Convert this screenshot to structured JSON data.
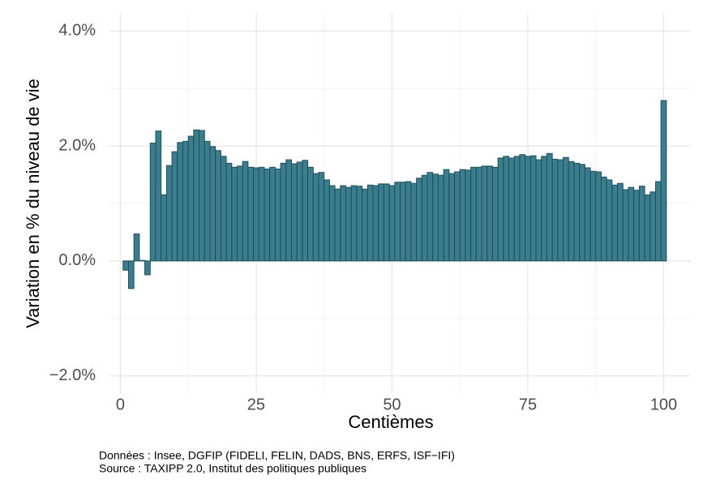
{
  "chart_data": {
    "type": "bar",
    "x_label": "Centièmes",
    "y_label": "Variation en % du niveau de vie",
    "captions": [
      "Données : Insee, DGFIP (FIDELI, FELIN, DADS, BNS, ERFS, ISF−IFI)",
      "Source : TAXIPP 2.0, Institut des politiques publiques"
    ],
    "x": [
      1,
      2,
      3,
      4,
      5,
      6,
      7,
      8,
      9,
      10,
      11,
      12,
      13,
      14,
      15,
      16,
      17,
      18,
      19,
      20,
      21,
      22,
      23,
      24,
      25,
      26,
      27,
      28,
      29,
      30,
      31,
      32,
      33,
      34,
      35,
      36,
      37,
      38,
      39,
      40,
      41,
      42,
      43,
      44,
      45,
      46,
      47,
      48,
      49,
      50,
      51,
      52,
      53,
      54,
      55,
      56,
      57,
      58,
      59,
      60,
      61,
      62,
      63,
      64,
      65,
      66,
      67,
      68,
      69,
      70,
      71,
      72,
      73,
      74,
      75,
      76,
      77,
      78,
      79,
      80,
      81,
      82,
      83,
      84,
      85,
      86,
      87,
      88,
      89,
      90,
      91,
      92,
      93,
      94,
      95,
      96,
      97,
      98,
      99,
      100
    ],
    "values": [
      -0.16,
      -0.48,
      0.47,
      0.01,
      -0.24,
      2.05,
      2.26,
      1.15,
      1.66,
      1.9,
      2.06,
      2.08,
      2.17,
      2.28,
      2.27,
      2.08,
      1.99,
      1.92,
      1.82,
      1.7,
      1.63,
      1.65,
      1.73,
      1.63,
      1.62,
      1.63,
      1.6,
      1.63,
      1.6,
      1.7,
      1.76,
      1.69,
      1.72,
      1.75,
      1.63,
      1.52,
      1.54,
      1.41,
      1.31,
      1.25,
      1.31,
      1.28,
      1.31,
      1.3,
      1.25,
      1.32,
      1.31,
      1.34,
      1.34,
      1.31,
      1.37,
      1.37,
      1.38,
      1.35,
      1.44,
      1.49,
      1.54,
      1.51,
      1.49,
      1.59,
      1.52,
      1.55,
      1.59,
      1.58,
      1.63,
      1.63,
      1.65,
      1.65,
      1.63,
      1.79,
      1.82,
      1.79,
      1.82,
      1.85,
      1.82,
      1.83,
      1.76,
      1.82,
      1.87,
      1.77,
      1.76,
      1.8,
      1.73,
      1.7,
      1.68,
      1.62,
      1.56,
      1.55,
      1.46,
      1.41,
      1.32,
      1.35,
      1.24,
      1.28,
      1.23,
      1.3,
      1.15,
      1.2,
      1.38,
      2.79
    ],
    "color": "#3b7d8d",
    "edge_color": "#1d4f5b",
    "xlim": [
      -2,
      105
    ],
    "xticks": [
      0,
      25,
      50,
      75,
      100
    ],
    "xminor": [
      12.5,
      37.5,
      62.5,
      87.5
    ],
    "ylim": [
      -2.3,
      4.3
    ],
    "yticks": [
      {
        "value": -2,
        "label": "−2.0%"
      },
      {
        "value": 0,
        "label": "0.0%"
      },
      {
        "value": 2,
        "label": "2.0%"
      },
      {
        "value": 4,
        "label": "4.0%"
      }
    ],
    "yminor": [
      -1,
      1,
      3
    ],
    "grid": true
  }
}
